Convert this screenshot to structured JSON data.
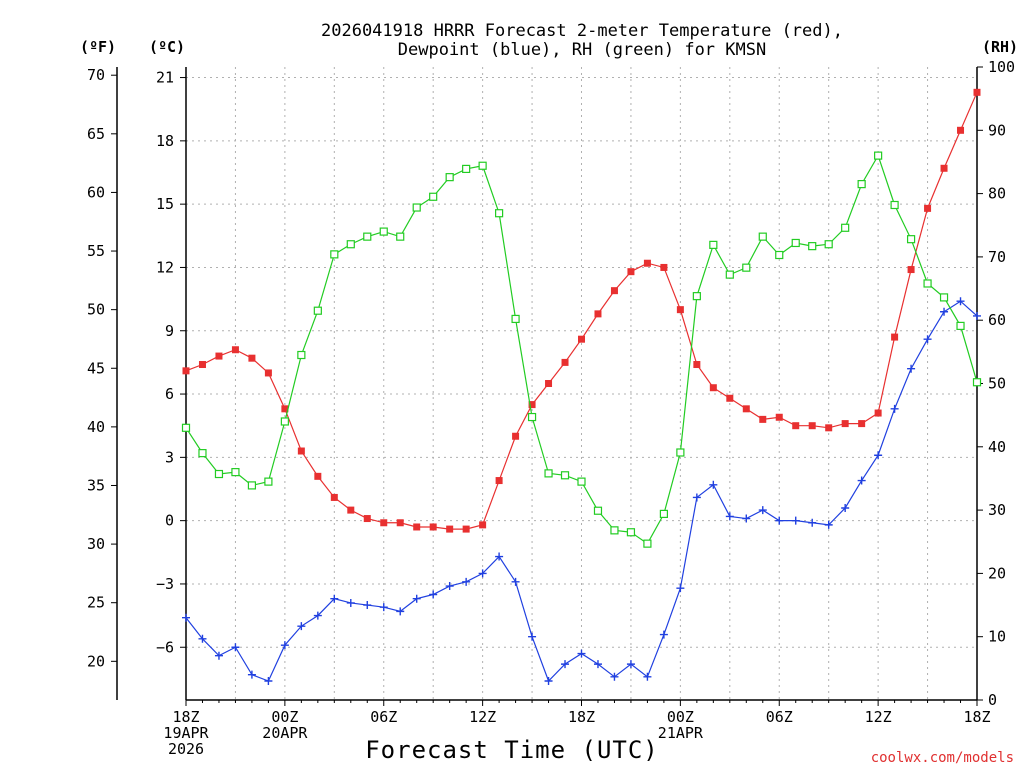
{
  "chart_data": {
    "type": "line",
    "title_lines": [
      "2026041918 HRRR Forecast 2-meter Temperature (red),",
      "Dewpoint (blue), RH (green) for KMSN"
    ],
    "xlabel": "Forecast Time (UTC)",
    "credit": "coolwx.com/models",
    "unit_labels": {
      "f": "(ºF)",
      "c": "(ºC)",
      "rh": "(RH)"
    },
    "xlim": [
      0,
      48
    ],
    "x_ticks": [
      {
        "x": 0,
        "lines": [
          "18Z",
          "19APR",
          "2026"
        ]
      },
      {
        "x": 6,
        "lines": [
          "00Z",
          "20APR"
        ]
      },
      {
        "x": 12,
        "lines": [
          "06Z"
        ]
      },
      {
        "x": 18,
        "lines": [
          "12Z"
        ]
      },
      {
        "x": 24,
        "lines": [
          "18Z"
        ]
      },
      {
        "x": 30,
        "lines": [
          "00Z",
          "21APR"
        ]
      },
      {
        "x": 36,
        "lines": [
          "06Z"
        ]
      },
      {
        "x": 42,
        "lines": [
          "12Z"
        ]
      },
      {
        "x": 48,
        "lines": [
          "18Z"
        ]
      }
    ],
    "y_celsius": {
      "range": [
        -8.5,
        21.5
      ],
      "ticks": [
        21,
        18,
        15,
        12,
        9,
        6,
        3,
        0,
        -3,
        -6
      ],
      "tick_labels": [
        "21",
        "18",
        "15",
        "12",
        "9",
        "6",
        "3",
        "0",
        "−3",
        "−6"
      ]
    },
    "y_fahrenheit": {
      "ticks": [
        70,
        65,
        60,
        55,
        50,
        45,
        40,
        35,
        30,
        25,
        20
      ],
      "tick_labels": [
        "70",
        "65",
        "60",
        "55",
        "50",
        "45",
        "40",
        "35",
        "30",
        "25",
        "20"
      ]
    },
    "y_rh": {
      "range": [
        0,
        100
      ],
      "ticks": [
        100,
        90,
        80,
        70,
        60,
        50,
        40,
        30,
        20,
        10,
        0
      ],
      "tick_labels": [
        "100",
        "90",
        "80",
        "70",
        "60",
        "50",
        "40",
        "30",
        "20",
        "10",
        "0"
      ]
    },
    "series": [
      {
        "name": "2-meter Temperature",
        "units": "C",
        "axis": "celsius",
        "color": "#e83030",
        "marker": "filled-square",
        "values": [
          7.1,
          7.4,
          7.8,
          8.1,
          7.7,
          7.0,
          5.3,
          3.3,
          2.1,
          1.1,
          0.5,
          0.1,
          -0.1,
          -0.1,
          -0.3,
          -0.3,
          -0.4,
          -0.4,
          -0.2,
          1.9,
          4.0,
          5.5,
          6.5,
          7.5,
          8.6,
          9.8,
          10.9,
          11.8,
          12.2,
          12.0,
          10.0,
          7.4,
          6.3,
          5.8,
          5.3,
          4.8,
          4.9,
          4.5,
          4.5,
          4.4,
          4.6,
          4.6,
          5.1,
          8.7,
          11.9,
          14.8,
          16.7,
          18.5,
          20.3
        ]
      },
      {
        "name": "Dewpoint",
        "units": "C",
        "axis": "celsius",
        "color": "#2040e0",
        "marker": "plus",
        "values": [
          -4.6,
          -5.6,
          -6.4,
          -6.0,
          -7.3,
          -7.6,
          -5.9,
          -5.0,
          -4.5,
          -3.7,
          -3.9,
          -4.0,
          -4.1,
          -4.3,
          -3.7,
          -3.5,
          -3.1,
          -2.9,
          -2.5,
          -1.7,
          -2.9,
          -5.5,
          -7.6,
          -6.8,
          -6.3,
          -6.8,
          -7.4,
          -6.8,
          -7.4,
          -5.4,
          -3.2,
          1.1,
          1.7,
          0.2,
          0.1,
          0.5,
          0.0,
          0.0,
          -0.1,
          -0.2,
          0.6,
          1.9,
          3.1,
          5.3,
          7.2,
          8.6,
          9.9,
          10.4,
          9.7
        ]
      },
      {
        "name": "RH",
        "units": "%",
        "axis": "rh",
        "color": "#22cc22",
        "marker": "open-square",
        "values": [
          43,
          39,
          35.7,
          36,
          33.9,
          34.5,
          44,
          54.5,
          61.5,
          70.4,
          72,
          73.2,
          74,
          73.2,
          77.8,
          79.5,
          82.6,
          83.9,
          84.4,
          76.9,
          60.2,
          44.7,
          35.8,
          35.5,
          34.5,
          29.9,
          26.8,
          26.5,
          24.7,
          29.4,
          39.1,
          63.8,
          71.9,
          67.2,
          68.3,
          73.2,
          70.3,
          72.2,
          71.7,
          72.0,
          74.6,
          81.5,
          86.0,
          78.2,
          72.8,
          65.8,
          63.6,
          59.1,
          50.2
        ]
      }
    ]
  }
}
